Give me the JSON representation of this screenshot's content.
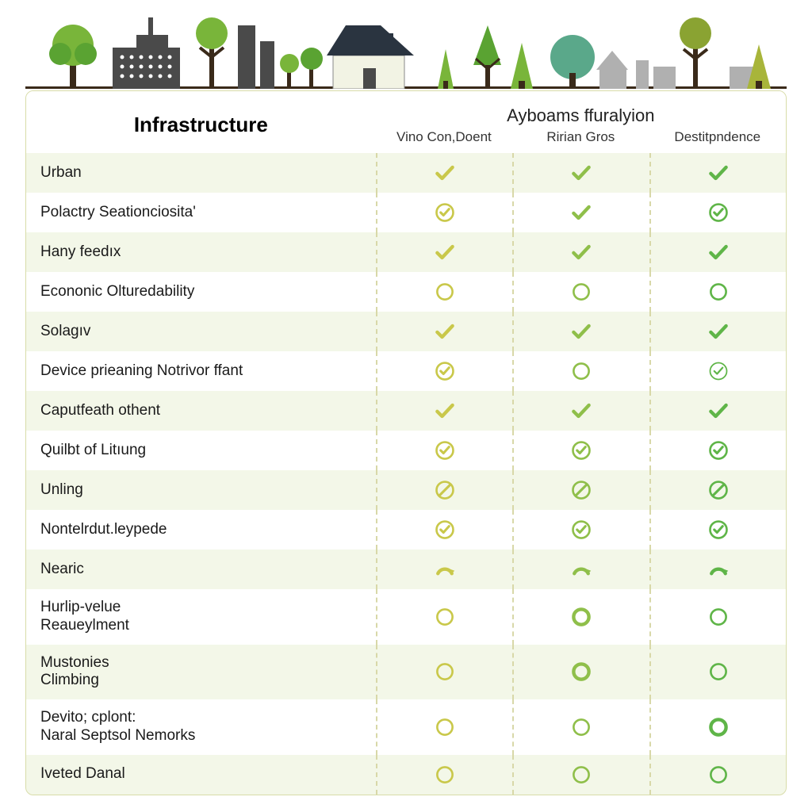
{
  "header": {
    "left_title": "Infrastructure",
    "right_title": "Ayboams ffuralyion",
    "subcolumns": [
      "Vino Con,Doent",
      "Ririan Gros",
      "Destitpndence"
    ]
  },
  "icon_colors": {
    "col1": "#c9c84a",
    "col2": "#8fbf4a",
    "col3": "#5fb548"
  },
  "skyline_colors": {
    "dark_building": "#4a4a4a",
    "house_roof": "#2a3440",
    "house_wall": "#f2f3e4",
    "tree_green1": "#79b53a",
    "tree_green2": "#5aa332",
    "tree_trunk": "#3a2a1a",
    "grey_building": "#b0b0b0",
    "teal_tree": "#5aa88a"
  },
  "rows": [
    {
      "label": "Urban",
      "alt": true,
      "cells": [
        "check",
        "check",
        "check"
      ]
    },
    {
      "label": "Polactry Seationciosita'",
      "alt": false,
      "cells": [
        "circle-check",
        "check",
        "circle-check"
      ]
    },
    {
      "label": "Hany feedıx",
      "alt": true,
      "cells": [
        "check",
        "check",
        "check"
      ]
    },
    {
      "label": "Econonic Olturedability",
      "alt": false,
      "cells": [
        "circle-empty",
        "circle-empty",
        "circle-empty"
      ]
    },
    {
      "label": "Solagıv",
      "alt": true,
      "cells": [
        "check",
        "check",
        "check"
      ]
    },
    {
      "label": "Device prieaning Notrivor ffant",
      "alt": false,
      "cells": [
        "circle-check",
        "circle-empty",
        "circle-check-thin"
      ]
    },
    {
      "label": "Caputfeath othent",
      "alt": true,
      "cells": [
        "check",
        "check",
        "check"
      ]
    },
    {
      "label": "Quilbt of Litıung",
      "alt": false,
      "cells": [
        "circle-check",
        "circle-check",
        "circle-check"
      ]
    },
    {
      "label": "Unling",
      "alt": true,
      "cells": [
        "circle-slash",
        "circle-slash",
        "circle-slash"
      ]
    },
    {
      "label": "Nontelrdut.leypede",
      "alt": false,
      "cells": [
        "circle-check",
        "circle-check",
        "circle-check"
      ]
    },
    {
      "label": "Nearic",
      "alt": true,
      "cells": [
        "arc",
        "arc",
        "arc"
      ]
    },
    {
      "label": "Hurlip-velue\nReaueylment",
      "alt": false,
      "cells": [
        "circle-empty",
        "circle-bold",
        "circle-empty"
      ]
    },
    {
      "label": "Mustonies\nClimbing",
      "alt": true,
      "cells": [
        "circle-empty",
        "circle-bold",
        "circle-empty"
      ]
    },
    {
      "label": "Devito; cplont:\nNaral Septsol Nemorks",
      "alt": false,
      "cells": [
        "circle-empty",
        "circle-empty",
        "circle-bold"
      ]
    },
    {
      "label": "Iveted Danal",
      "alt": true,
      "cells": [
        "circle-empty",
        "circle-empty",
        "circle-empty"
      ]
    }
  ]
}
